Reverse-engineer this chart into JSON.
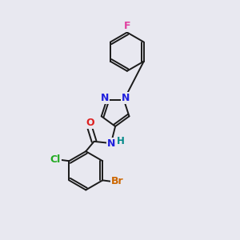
{
  "background_color": "#e8e8f0",
  "bond_color": "#1a1a1a",
  "atom_colors": {
    "F": "#e040a0",
    "N": "#2020dd",
    "O": "#dd2020",
    "Cl": "#22aa22",
    "Br": "#cc6600",
    "H": "#008888",
    "C": "#1a1a1a"
  },
  "font_size": 8.5,
  "figsize": [
    3.0,
    3.0
  ],
  "dpi": 100
}
